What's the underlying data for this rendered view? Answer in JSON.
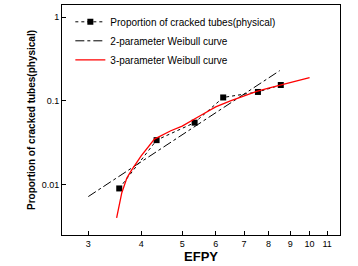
{
  "chart_data": {
    "type": "line",
    "x_label": "EFPY",
    "y_label": "Proportion of cracked tubes(physical)",
    "log": true,
    "grid": false,
    "legend": "upper left",
    "xlim": [
      2.6,
      11.8
    ],
    "ylim": [
      0.0025,
      1.4
    ],
    "xticks": [
      3,
      4,
      5,
      6,
      7,
      8,
      9,
      10,
      11
    ],
    "yticks": [
      0.01,
      0.1,
      1
    ],
    "series": [
      {
        "name": "Proportion of cracked tubes(physical)",
        "color": "#000000",
        "marker": "square",
        "line_style": "dot",
        "x": [
          3.55,
          4.35,
          5.35,
          6.25,
          7.55,
          8.55
        ],
        "values": [
          0.009,
          0.034,
          0.055,
          0.11,
          0.128,
          0.155
        ]
      },
      {
        "name": "2-parameter Weibull curve",
        "color": "#000000",
        "marker": "none",
        "line_style": "dashdot",
        "x": [
          3.0,
          8.5
        ],
        "values": [
          0.0072,
          0.23
        ]
      },
      {
        "name": "3-parameter Weibull curve",
        "color": "#ff0000",
        "marker": "none",
        "line_style": "solid",
        "x": [
          3.5,
          3.6,
          3.7,
          3.8,
          4.0,
          4.3,
          4.7,
          5.0,
          5.5,
          6.0,
          6.5,
          7.0,
          7.5,
          8.0,
          9.0,
          10.0
        ],
        "values": [
          0.004,
          0.008,
          0.012,
          0.015,
          0.022,
          0.035,
          0.044,
          0.05,
          0.066,
          0.085,
          0.1,
          0.115,
          0.13,
          0.142,
          0.165,
          0.19
        ]
      }
    ]
  }
}
